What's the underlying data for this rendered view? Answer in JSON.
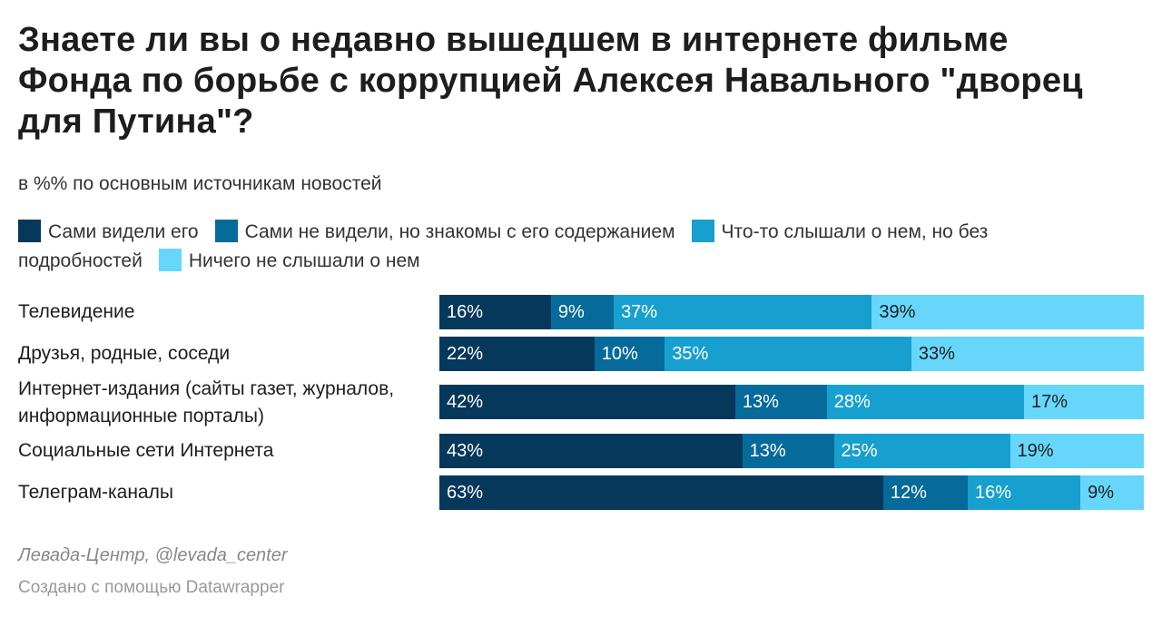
{
  "chart_data": {
    "type": "bar",
    "stacked": true,
    "orientation": "horizontal",
    "title": "Знаете ли вы о недавно вышедшем в интернете фильме Фонда по борьбе с коррупцией Алексея Навального \"дворец для Путина\"?",
    "subtitle": "в %% по основным источникам новостей",
    "categories": [
      "Телевидение",
      "Друзья, родные, соседи",
      "Интернет-издания (сайты газет, журналов, информационные порталы)",
      "Социальные сети Интернета",
      "Телеграм-каналы"
    ],
    "series": [
      {
        "name": "Сами видели его",
        "color": "#06385c",
        "text_color": "#ffffff",
        "values": [
          16,
          22,
          42,
          43,
          63
        ]
      },
      {
        "name": "Сами не видели, но знакомы с его содержанием",
        "color": "#066a9a",
        "text_color": "#ffffff",
        "values": [
          9,
          10,
          13,
          13,
          12
        ]
      },
      {
        "name": "Что-то слышали о нем, но без подробностей",
        "color": "#17a0cf",
        "text_color": "#ffffff",
        "values": [
          37,
          35,
          28,
          25,
          16
        ]
      },
      {
        "name": "Ничего не слышали о нем",
        "color": "#66d7fb",
        "text_color": "#1d1d1d",
        "values": [
          39,
          33,
          17,
          19,
          9
        ]
      }
    ],
    "value_suffix": "%",
    "legend_position": "top",
    "grid": false
  },
  "footer": {
    "source": "Левада-Центр, @levada_center",
    "credit": "Создано с помощью Datawrapper"
  }
}
